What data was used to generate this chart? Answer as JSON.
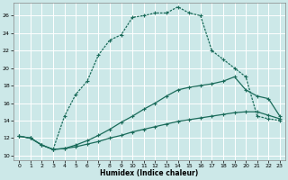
{
  "xlabel": "Humidex (Indice chaleur)",
  "bg_color": "#cce8e8",
  "grid_color": "#ffffff",
  "line_color": "#1a6b5a",
  "xlim": [
    -0.5,
    23.5
  ],
  "ylim": [
    9.5,
    27.5
  ],
  "xticks": [
    0,
    1,
    2,
    3,
    4,
    5,
    6,
    7,
    8,
    9,
    10,
    11,
    12,
    13,
    14,
    15,
    16,
    17,
    18,
    19,
    20,
    21,
    22,
    23
  ],
  "yticks": [
    10,
    12,
    14,
    16,
    18,
    20,
    22,
    24,
    26
  ],
  "line1_x": [
    0,
    1,
    2,
    3,
    4,
    5,
    6,
    7,
    8,
    9,
    10,
    11,
    12,
    13,
    14,
    15,
    16,
    17,
    18,
    19,
    20,
    21,
    22,
    23
  ],
  "line1_y": [
    12.2,
    12.0,
    11.2,
    10.7,
    10.8,
    11.0,
    11.3,
    11.6,
    12.0,
    12.3,
    12.7,
    13.0,
    13.3,
    13.6,
    13.9,
    14.1,
    14.3,
    14.5,
    14.7,
    14.9,
    15.0,
    15.0,
    14.6,
    14.2
  ],
  "line2_x": [
    0,
    1,
    2,
    3,
    4,
    5,
    6,
    7,
    8,
    9,
    10,
    11,
    12,
    13,
    14,
    15,
    16,
    17,
    18,
    19,
    20,
    21,
    22,
    23
  ],
  "line2_y": [
    12.2,
    12.0,
    11.2,
    10.7,
    10.8,
    11.2,
    11.7,
    12.3,
    13.0,
    13.8,
    14.5,
    15.3,
    16.0,
    16.8,
    17.5,
    17.8,
    18.0,
    18.2,
    18.5,
    19.0,
    17.5,
    16.8,
    16.5,
    14.5
  ],
  "line3_x": [
    0,
    1,
    2,
    3,
    4,
    5,
    6,
    7,
    8,
    9,
    10,
    11,
    12,
    13,
    14,
    15,
    16,
    17,
    18,
    19,
    20,
    21,
    22,
    23
  ],
  "line3_y": [
    12.2,
    12.0,
    11.2,
    10.7,
    14.5,
    17.0,
    18.5,
    21.5,
    23.2,
    23.8,
    25.8,
    26.0,
    26.3,
    26.3,
    27.0,
    26.3,
    26.0,
    22.0,
    21.0,
    20.0,
    19.0,
    14.5,
    14.2,
    14.0
  ],
  "figsize": [
    3.2,
    2.0
  ],
  "dpi": 100
}
